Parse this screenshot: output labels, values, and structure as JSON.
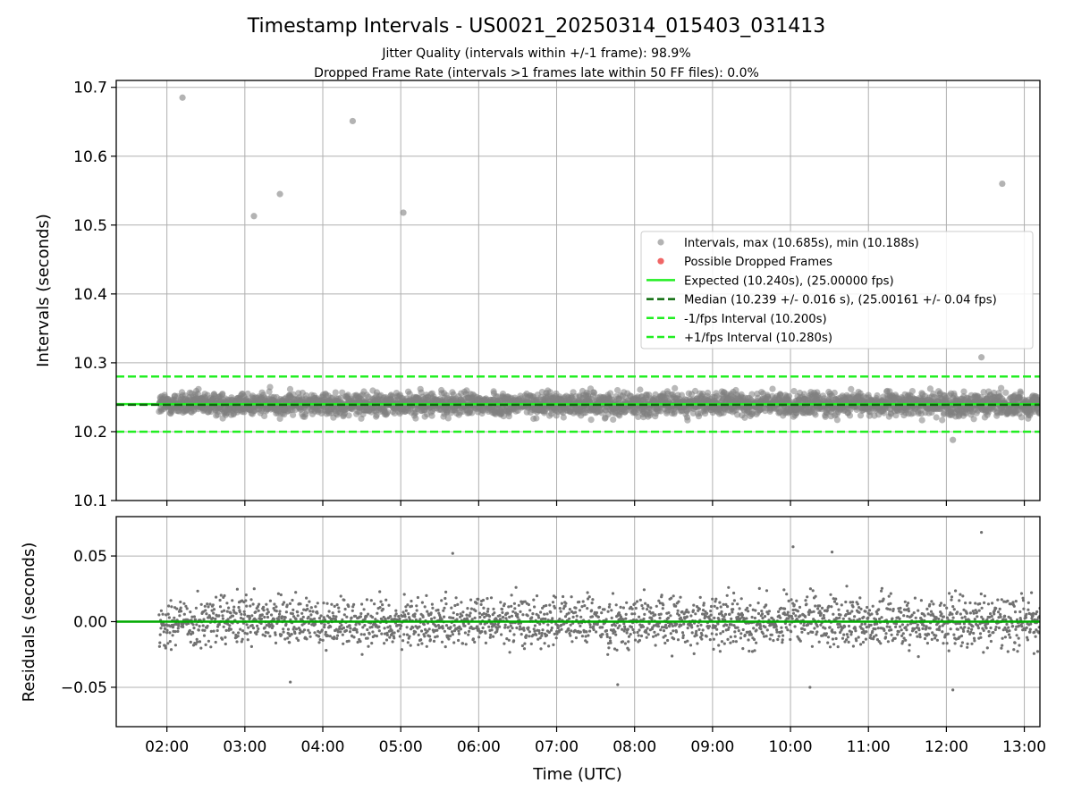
{
  "figure": {
    "title": "Timestamp Intervals - US0021_20250314_015403_031413",
    "subtitle_line1": "Jitter Quality (intervals within +/-1 frame): 98.9%",
    "subtitle_line2": "Dropped Frame Rate (intervals >1 frames late within 50 FF files): 0.0%"
  },
  "chart_data": [
    {
      "type": "scatter",
      "panel": "intervals",
      "ylabel": "Intervals (seconds)",
      "xlabel": "",
      "ylim": [
        10.1,
        10.71
      ],
      "yticks": [
        "10.1",
        "10.2",
        "10.3",
        "10.4",
        "10.5",
        "10.6",
        "10.7"
      ],
      "xticks": [
        "02:00",
        "03:00",
        "04:00",
        "05:00",
        "06:00",
        "07:00",
        "08:00",
        "09:00",
        "10:00",
        "11:00",
        "12:00",
        "13:00"
      ],
      "xlim_hours": [
        1.35,
        13.2
      ],
      "grid": true,
      "legend_position": "center-right",
      "points_summary": {
        "count": 4175,
        "x_range_hours": [
          1.9,
          13.2
        ],
        "typical_band": [
          10.2,
          10.28
        ],
        "median": 10.239
      },
      "outliers": [
        {
          "x": "02:12",
          "y": 10.685
        },
        {
          "x": "03:07",
          "y": 10.513
        },
        {
          "x": "03:27",
          "y": 10.545
        },
        {
          "x": "04:23",
          "y": 10.651
        },
        {
          "x": "05:02",
          "y": 10.518
        },
        {
          "x": "12:43",
          "y": 10.56
        },
        {
          "x": "12:27",
          "y": 10.308
        },
        {
          "x": "12:05",
          "y": 10.188
        }
      ],
      "lines": [
        {
          "name": "Expected (10.240s), (25.00000 fps)",
          "y": 10.24,
          "color": "#22ee22",
          "style": "solid"
        },
        {
          "name": "Median (10.239 +/- 0.016 s), (25.00161 +/- 0.04 fps)",
          "y": 10.239,
          "color": "#0b6b0b",
          "style": "dashed"
        },
        {
          "name": "-1/fps Interval (10.200s)",
          "y": 10.2,
          "color": "#22ee22",
          "style": "dashed"
        },
        {
          "name": "+1/fps Interval (10.280s)",
          "y": 10.28,
          "color": "#22ee22",
          "style": "dashed"
        }
      ],
      "legend": [
        {
          "label": "Intervals, max (10.685s), min (10.188s)",
          "kind": "dot",
          "color": "#a0a0a0"
        },
        {
          "label": "Possible Dropped Frames",
          "kind": "dot",
          "color": "#ee5555"
        },
        {
          "label": "Expected (10.240s), (25.00000 fps)",
          "kind": "solid",
          "color": "#22ee22"
        },
        {
          "label": "Median (10.239 +/- 0.016 s), (25.00161 +/- 0.04 fps)",
          "kind": "dashed",
          "color": "#0b6b0b"
        },
        {
          "label": "-1/fps Interval (10.200s)",
          "kind": "dashed",
          "color": "#22ee22"
        },
        {
          "label": "+1/fps Interval (10.280s)",
          "kind": "dashed",
          "color": "#22ee22"
        }
      ]
    },
    {
      "type": "scatter",
      "panel": "residuals",
      "ylabel": "Residuals (seconds)",
      "xlabel": "Time (UTC)",
      "ylim": [
        -0.08,
        0.08
      ],
      "yticks": [
        "−0.05",
        "0.00",
        "0.05"
      ],
      "ytick_values": [
        -0.05,
        0,
        0.05
      ],
      "xticks": [
        "02:00",
        "03:00",
        "04:00",
        "05:00",
        "06:00",
        "07:00",
        "08:00",
        "09:00",
        "10:00",
        "11:00",
        "12:00",
        "13:00"
      ],
      "xlim_hours": [
        1.35,
        13.2
      ],
      "grid": true,
      "points_summary": {
        "count": 4175,
        "typical_band": [
          -0.04,
          0.04
        ]
      },
      "outliers": [
        {
          "x": "05:40",
          "y": 0.052
        },
        {
          "x": "10:02",
          "y": 0.057
        },
        {
          "x": "10:32",
          "y": 0.053
        },
        {
          "x": "12:27",
          "y": 0.068
        },
        {
          "x": "10:15",
          "y": -0.05
        },
        {
          "x": "12:05",
          "y": -0.052
        },
        {
          "x": "03:35",
          "y": -0.046
        },
        {
          "x": "07:47",
          "y": -0.048
        }
      ],
      "lines": [
        {
          "name": "zero",
          "y": 0,
          "color": "#00aa00",
          "style": "solid"
        }
      ]
    }
  ],
  "colors": {
    "points": "#808080",
    "expected": "#22ee22",
    "median": "#0b6b0b",
    "grid": "#b0b0b0"
  }
}
